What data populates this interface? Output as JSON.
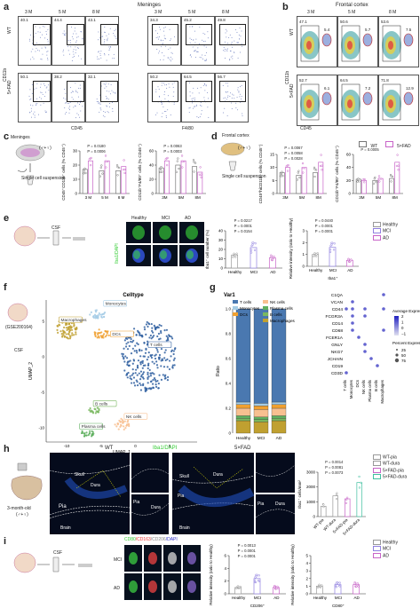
{
  "panels": {
    "a": {
      "letter": "a",
      "region": "Meninges",
      "ages": [
        "3 M",
        "5 M",
        "8 M",
        "3 M",
        "5 M",
        "8 M"
      ],
      "rows": [
        "WT",
        "5×FAD"
      ],
      "xlabels": [
        "CD45",
        "F4/80"
      ],
      "ylabel": "CD11b",
      "pct_cd45": [
        [
          "40.1",
          "44.4",
          "43.1"
        ],
        [
          "50.1",
          "38.2",
          "32.1"
        ]
      ],
      "pct_f480": [
        [
          "34.3",
          "45.2",
          "49.8"
        ],
        [
          "50.2",
          "64.5",
          "56.7"
        ]
      ]
    },
    "b": {
      "letter": "b",
      "region": "Frontal cortex",
      "ages": [
        "3 M",
        "5 M",
        "8 M"
      ],
      "rows": [
        "WT",
        "5×FAD"
      ],
      "xlabel": "CD45",
      "ylabel": "CD11b",
      "pct_main": [
        [
          "47.1",
          "50.6",
          "53.6"
        ],
        [
          "52.7",
          "64.5",
          "71.8"
        ]
      ],
      "pct_side": [
        [
          "5.4",
          "5.7",
          "7.5"
        ],
        [
          "6.1",
          "7.2",
          "12.9"
        ]
      ]
    },
    "c": {
      "letter": "c",
      "icon_caption": "Meninges",
      "genotype": "(♂+♀)",
      "pipe": "Single cell suspension",
      "ylab1": "CD45⁺CD11b⁺ cells (% CD45⁺)",
      "ylab2": "CD11b⁺F4/80⁺ cells (% CD45⁺)",
      "ticks1": [
        "3 M",
        "5 M",
        "8 M"
      ],
      "ticks2": [
        "3M",
        "5M",
        "8M"
      ],
      "p1": [
        "P = 0.0180",
        "P = 0.0006"
      ],
      "p2": [
        "P = 0.0063",
        "P = 0.0003"
      ]
    },
    "d": {
      "letter": "d",
      "icon_caption": "Frontal cortex",
      "genotype": "(♂+♀)",
      "pipe": "Single cell suspension",
      "legend": [
        "WT",
        "5×FAD"
      ],
      "ylab1": "CD45^hiCD11b⁺ cells (% CD45⁺)",
      "ylab2": "CD11b⁺F4/80⁺ cells (% CD45⁺)",
      "ticks": [
        "3M",
        "5M",
        "8M"
      ],
      "p1": [
        "P = 0.0067",
        "P = 0.0058",
        "P = 0.0028"
      ],
      "p2": [
        "P = 0.0005"
      ]
    },
    "e": {
      "letter": "e",
      "csf": "CSF",
      "micro_cols": [
        "Healthy",
        "MCI",
        "AD"
      ],
      "stain": "Iba1/DAPI",
      "ylab1": "Iba1⁺ cell number (%)",
      "ylab2": "Relative intensity (ratio to Healthy)",
      "xlab2": "Iba1⁺",
      "p1": [
        "P = 0.0217",
        "P = 0.0001",
        "P = 0.0154"
      ],
      "p2": [
        "P = 0.0440",
        "P = 0.0001",
        "P = 0.0001"
      ],
      "legend": [
        "Healthy",
        "MCI",
        "AD"
      ]
    },
    "f": {
      "letter": "f",
      "dataset": "(GSE200164)",
      "csf": "CSF",
      "title": "Celltype",
      "xlabel": "UMAP_1",
      "ylabel": "UMAP_2",
      "xticks": [
        "-10",
        "-5",
        "0",
        "5"
      ],
      "yticks": [
        "5",
        "0",
        "-5",
        "-10"
      ],
      "labels": [
        "Monocytes",
        "Macrophages",
        "DCs",
        "T cells",
        "B cells",
        "NK cells",
        "Plasma cells"
      ]
    },
    "g": {
      "letter": "g",
      "title": "Var1",
      "ylabel": "Ratio",
      "yticks": [
        "1.0",
        "0.8",
        "0.6",
        "0.4",
        "0.2",
        "0"
      ],
      "categories": [
        "Healthy",
        "MCI",
        "AD"
      ],
      "legend": [
        "T cells",
        "Monocytes",
        "DCs",
        "NK cells",
        "Plasma cells",
        "B cells",
        "Macrophages"
      ],
      "genes": [
        "C1QA",
        "VCAN",
        "CD44",
        "FCGR3A",
        "CD14",
        "CD68",
        "FCER1A",
        "GNLY",
        "NKG7",
        "JCHAIN",
        "CD19",
        "CD3D"
      ],
      "dot_x": [
        "T cells",
        "Monocytes",
        "DCs",
        "NK cells",
        "Plasma cells",
        "B cells",
        "Macrophages"
      ],
      "avg_title": "Average Expression",
      "avg_ticks": [
        "2",
        "1",
        "0",
        "−1"
      ],
      "pct_title": "Percent Expressed",
      "pct_ticks": [
        "25",
        "50",
        "75"
      ]
    },
    "h": {
      "letter": "h",
      "age": "3-month-old",
      "genotype": "(♂+♀)",
      "cols": [
        "WT",
        "5×FAD"
      ],
      "stain": "Iba1/DAPI",
      "labels": [
        "Skull",
        "Dura",
        "Pia",
        "Brain",
        "Pia",
        "Dura"
      ],
      "ylabel": "Iba1⁺ cells/mm²",
      "p": [
        "P = 0.0014",
        "P = 0.0081",
        "P = 0.0073"
      ],
      "legend": [
        "WT-pia",
        "WT-dura",
        "5×FAD-pia",
        "5×FAD-dura"
      ]
    },
    "i": {
      "letter": "i",
      "csf": "CSF",
      "stain": [
        "CD80",
        "/CD163",
        "/CD206",
        "/DAPI"
      ],
      "rows": [
        "MCI",
        "AD"
      ],
      "ylab1": "Relative intensity (ratio to Healthy)",
      "xlab1": "CD206⁺",
      "xlab2": "CD80⁺",
      "p1": [
        "P = 0.0013",
        "P = 0.0001",
        "P = 0.0001"
      ],
      "legend": [
        "Healthy",
        "MCI",
        "AD"
      ]
    }
  },
  "colors": {
    "wt": "#777777",
    "fad": "#c864c8",
    "healthy": "#999999",
    "mci": "#9080e0",
    "ad": "#c864c8",
    "tcells": "#4a78b0",
    "mono": "#a6cde6",
    "dcs": "#f0a030",
    "nk": "#f8c090",
    "plasma": "#60b060",
    "bcells": "#7ab860",
    "macro": "#c0a030",
    "umap_t": "#2f5fa0",
    "iba1": "#40c040"
  },
  "chart_data": [
    {
      "type": "bar",
      "id": "g-stacked",
      "categories": [
        "Healthy",
        "MCI",
        "AD"
      ],
      "ylim": [
        0,
        1
      ],
      "series": [
        {
          "name": "Macrophages",
          "values": [
            0.1,
            0.09,
            0.1
          ]
        },
        {
          "name": "B cells",
          "values": [
            0.02,
            0.02,
            0.02
          ]
        },
        {
          "name": "Plasma cells",
          "values": [
            0.02,
            0.02,
            0.02
          ]
        },
        {
          "name": "NK cells",
          "values": [
            0.06,
            0.06,
            0.06
          ]
        },
        {
          "name": "DCs",
          "values": [
            0.03,
            0.03,
            0.03
          ]
        },
        {
          "name": "Monocytes",
          "values": [
            0.02,
            0.02,
            0.02
          ]
        },
        {
          "name": "T cells",
          "values": [
            0.75,
            0.76,
            0.75
          ]
        }
      ]
    },
    {
      "type": "bar",
      "id": "c-left",
      "categories": [
        "3 M",
        "5 M",
        "8 M"
      ],
      "ylim": [
        0,
        30
      ],
      "series": [
        {
          "name": "WT",
          "values": [
            17,
            16,
            16
          ]
        },
        {
          "name": "5×FAD",
          "values": [
            23,
            23,
            19
          ]
        }
      ]
    },
    {
      "type": "bar",
      "id": "c-right",
      "categories": [
        "3M",
        "5M",
        "8M"
      ],
      "ylim": [
        0,
        60
      ],
      "series": [
        {
          "name": "WT",
          "values": [
            36,
            40,
            38
          ]
        },
        {
          "name": "5×FAD",
          "values": [
            46,
            46,
            30
          ]
        }
      ]
    },
    {
      "type": "bar",
      "id": "d-left",
      "categories": [
        "3M",
        "5M",
        "8M"
      ],
      "ylim": [
        0,
        15
      ],
      "series": [
        {
          "name": "WT",
          "values": [
            8,
            7,
            8
          ]
        },
        {
          "name": "5×FAD",
          "values": [
            10,
            10,
            12
          ]
        }
      ]
    },
    {
      "type": "bar",
      "id": "d-right",
      "categories": [
        "3M",
        "5M",
        "8M"
      ],
      "ylim": [
        0,
        60
      ],
      "series": [
        {
          "name": "WT",
          "values": [
            22,
            20,
            23
          ]
        },
        {
          "name": "5×FAD",
          "values": [
            20,
            23,
            48
          ]
        }
      ]
    },
    {
      "type": "bar",
      "id": "e-left",
      "categories": [
        "Healthy",
        "MCI",
        "AD"
      ],
      "ylim": [
        0,
        40
      ],
      "series": [
        {
          "name": "Iba1",
          "values": [
            14,
            22,
            11
          ]
        }
      ]
    },
    {
      "type": "bar",
      "id": "e-right",
      "categories": [
        "Healthy",
        "MCI",
        "AD"
      ],
      "ylim": [
        0,
        3
      ],
      "series": [
        {
          "name": "Iba1",
          "values": [
            1.0,
            1.6,
            0.5
          ]
        }
      ]
    },
    {
      "type": "bar",
      "id": "h-bar",
      "categories": [
        "WT-pia",
        "WT-dura",
        "5×FAD-pia",
        "5×FAD-dura"
      ],
      "ylim": [
        0,
        3000
      ],
      "series": [
        {
          "name": "Iba1",
          "values": [
            700,
            1400,
            1200,
            2300
          ]
        }
      ]
    },
    {
      "type": "bar",
      "id": "i-left",
      "categories": [
        "Healthy",
        "MCI",
        "AD"
      ],
      "ylim": [
        0,
        6
      ],
      "series": [
        {
          "name": "CD206",
          "values": [
            1.0,
            2.4,
            1.0
          ]
        }
      ]
    },
    {
      "type": "bar",
      "id": "i-right",
      "categories": [
        "Healthy",
        "MCI",
        "AD"
      ],
      "ylim": [
        0,
        5
      ],
      "series": [
        {
          "name": "CD80",
          "values": [
            1.0,
            1.2,
            1.2
          ]
        }
      ]
    }
  ]
}
